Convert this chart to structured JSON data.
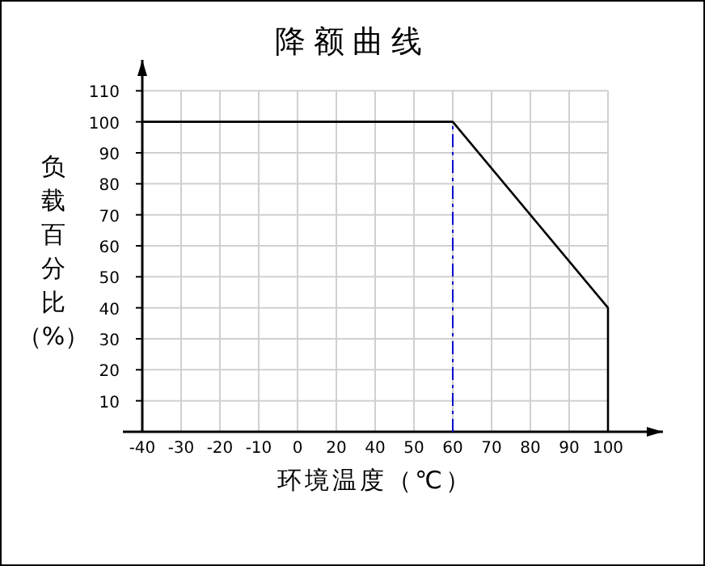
{
  "chart_data": {
    "type": "line",
    "title": "降额曲线",
    "xlabel": "环境温度（℃）",
    "ylabel": "负载百分比（%）",
    "categories": [
      "-40",
      "-30",
      "-20",
      "-10",
      "0",
      "20",
      "40",
      "50",
      "60",
      "70",
      "80",
      "90",
      "100"
    ],
    "series": [
      {
        "x": [
          "-40",
          "60",
          "100",
          "100"
        ],
        "values": [
          100,
          100,
          40,
          0
        ],
        "color": "#000000"
      }
    ],
    "ylim": [
      0,
      120
    ],
    "yticks": [
      10,
      20,
      30,
      40,
      50,
      60,
      70,
      80,
      90,
      100,
      110
    ],
    "grid": true,
    "marker": "none",
    "line_style": "solid",
    "ref_lines": [
      {
        "axis": "x",
        "value": "60",
        "color": "#0000cc",
        "line_style": "dashed"
      }
    ]
  }
}
